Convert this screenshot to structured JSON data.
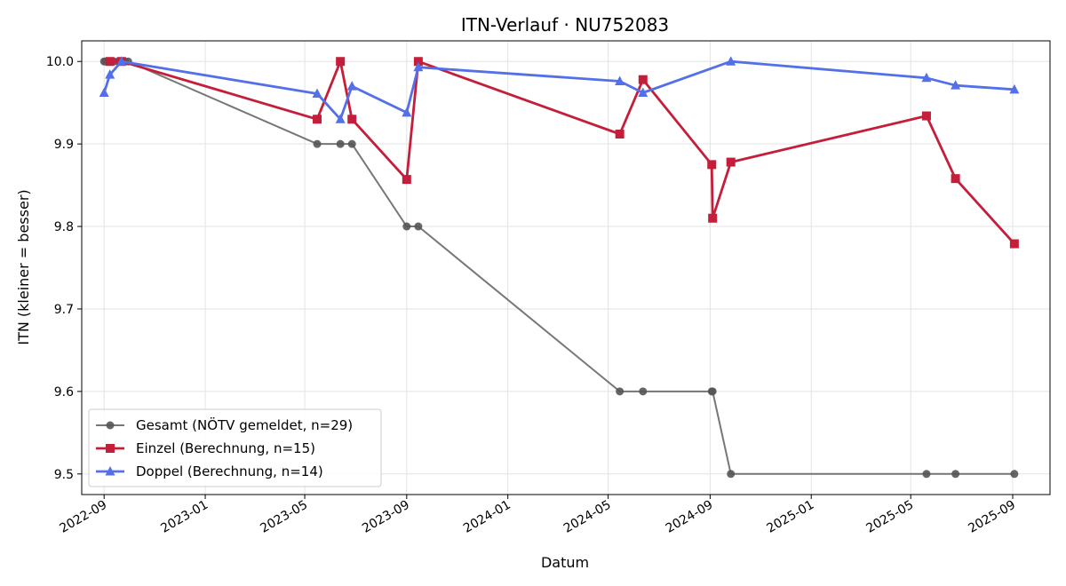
{
  "chart_data": {
    "type": "line",
    "title": "ITN-Verlauf · NU752083",
    "xlabel": "Datum",
    "ylabel": "ITN  (kleiner = besser)",
    "x_ticks": [
      "2022-09",
      "2023-01",
      "2023-05",
      "2023-09",
      "2024-01",
      "2024-05",
      "2024-09",
      "2025-01",
      "2025-05",
      "2025-09"
    ],
    "y_ticks": [
      "9.5",
      "9.6",
      "9.7",
      "9.8",
      "9.9",
      "10.0"
    ],
    "ylim": [
      9.475,
      10.025
    ],
    "xlim": [
      "2022-08-05",
      "2025-10-16"
    ],
    "grid": true,
    "legend_position": "bottom-left",
    "series": [
      {
        "name": "Gesamt (NÖTV gemeldet, n=29)",
        "color": "#555555",
        "marker": "circle",
        "points": [
          [
            "2022-09-01",
            10.0
          ],
          [
            "2022-09-03",
            10.0
          ],
          [
            "2022-09-08",
            10.0
          ],
          [
            "2022-09-13",
            10.0
          ],
          [
            "2022-09-18",
            10.0
          ],
          [
            "2022-09-22",
            10.0
          ],
          [
            "2022-09-26",
            10.0
          ],
          [
            "2022-09-30",
            10.0
          ],
          [
            "2023-05-16",
            9.9
          ],
          [
            "2023-06-13",
            9.9
          ],
          [
            "2023-06-27",
            9.9
          ],
          [
            "2023-09-01",
            9.8
          ],
          [
            "2023-09-15",
            9.8
          ],
          [
            "2024-05-15",
            9.6
          ],
          [
            "2024-06-12",
            9.6
          ],
          [
            "2024-09-03",
            9.6
          ],
          [
            "2024-09-04",
            9.6
          ],
          [
            "2024-09-26",
            9.5
          ],
          [
            "2025-05-20",
            9.5
          ],
          [
            "2025-06-24",
            9.5
          ],
          [
            "2025-09-03",
            9.5
          ]
        ]
      },
      {
        "name": "Einzel (Berechnung, n=15)",
        "color": "#c41e3a",
        "marker": "square",
        "points": [
          [
            "2022-09-08",
            10.0
          ],
          [
            "2022-09-22",
            10.0
          ],
          [
            "2023-05-16",
            9.93
          ],
          [
            "2023-06-13",
            10.0
          ],
          [
            "2023-06-27",
            9.93
          ],
          [
            "2023-09-01",
            9.857
          ],
          [
            "2023-09-15",
            10.0
          ],
          [
            "2024-05-15",
            9.912
          ],
          [
            "2024-06-12",
            9.978
          ],
          [
            "2024-09-03",
            9.875
          ],
          [
            "2024-09-04",
            9.81
          ],
          [
            "2024-09-26",
            9.878
          ],
          [
            "2025-05-20",
            9.934
          ],
          [
            "2025-06-24",
            9.858
          ],
          [
            "2025-09-03",
            9.779
          ]
        ]
      },
      {
        "name": "Doppel (Berechnung, n=14)",
        "color": "#5470e8",
        "marker": "triangle",
        "points": [
          [
            "2022-09-01",
            9.962
          ],
          [
            "2022-09-08",
            9.984
          ],
          [
            "2022-09-22",
            10.0
          ],
          [
            "2023-05-16",
            9.961
          ],
          [
            "2023-06-13",
            9.93
          ],
          [
            "2023-06-27",
            9.97
          ],
          [
            "2023-09-01",
            9.938
          ],
          [
            "2023-09-15",
            9.993
          ],
          [
            "2024-05-15",
            9.976
          ],
          [
            "2024-06-12",
            9.962
          ],
          [
            "2024-09-26",
            10.0
          ],
          [
            "2025-05-20",
            9.98
          ],
          [
            "2025-06-24",
            9.971
          ],
          [
            "2025-09-03",
            9.966
          ]
        ]
      }
    ]
  }
}
